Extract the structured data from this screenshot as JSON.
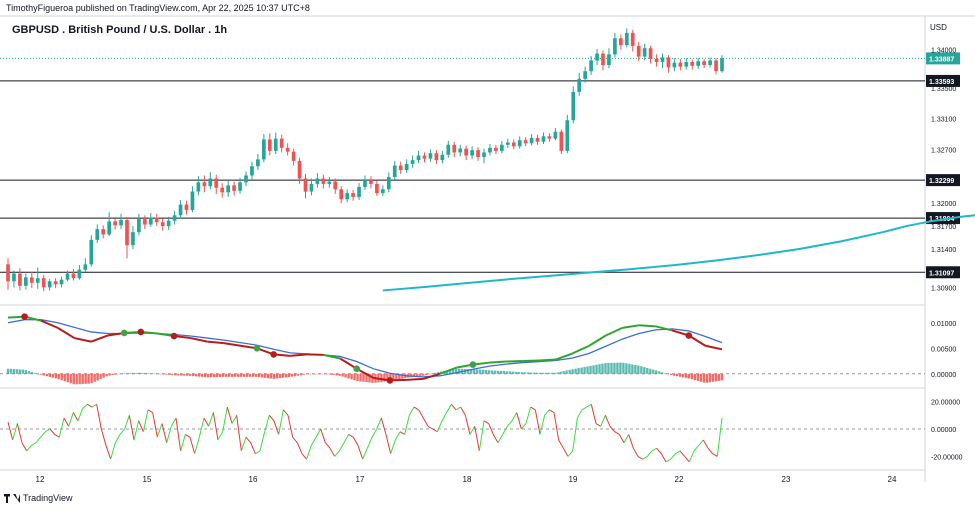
{
  "header": {
    "publish_info": "TimothyFigueroa published on TradingView.com, Apr 22, 2025 10:37 UTC+8",
    "symbol_title": "GBPUSD . British Pound / U.S. Dollar . 1h"
  },
  "footer": {
    "logo_text": "TradingView"
  },
  "colors": {
    "up": "#26a69a",
    "down": "#ef5350",
    "level_line": "#131722",
    "moving_average": "#1eb8c9",
    "macd_fast": "#2fa52f",
    "macd_slow": "#b71c1c",
    "macd_signal": "#3a6fd8",
    "osc_up": "#3cdc3c",
    "osc_down": "#e53935"
  },
  "chart_data": {
    "type": "candlestick",
    "currency": "USD",
    "price_axis": {
      "range": [
        1.3067,
        1.3444
      ],
      "ticks": [
        "1.34000",
        "1.33500",
        "1.33100",
        "1.32700",
        "1.32000",
        "1.31700",
        "1.31400",
        "1.30900"
      ]
    },
    "current_price": "1.33887",
    "levels": [
      "1.33593",
      "1.32299",
      "1.31804",
      "1.31097"
    ],
    "x_labels": [
      "12",
      "15",
      "16",
      "17",
      "18",
      "19",
      "22",
      "23",
      "24"
    ],
    "candles": [
      {
        "o": 1.312,
        "c": 1.3098,
        "h": 1.3128,
        "l": 1.3087
      },
      {
        "o": 1.3098,
        "c": 1.3108,
        "h": 1.3112,
        "l": 1.309
      },
      {
        "o": 1.3108,
        "c": 1.3092,
        "h": 1.3115,
        "l": 1.3086
      },
      {
        "o": 1.3092,
        "c": 1.3103,
        "h": 1.3108,
        "l": 1.3087
      },
      {
        "o": 1.3103,
        "c": 1.3096,
        "h": 1.311,
        "l": 1.3089
      },
      {
        "o": 1.3096,
        "c": 1.3102,
        "h": 1.3116,
        "l": 1.3088
      },
      {
        "o": 1.3102,
        "c": 1.309,
        "h": 1.3106,
        "l": 1.3085
      },
      {
        "o": 1.309,
        "c": 1.3098,
        "h": 1.3101,
        "l": 1.3086
      },
      {
        "o": 1.3098,
        "c": 1.3094,
        "h": 1.3102,
        "l": 1.3089
      },
      {
        "o": 1.3094,
        "c": 1.31,
        "h": 1.3104,
        "l": 1.309
      },
      {
        "o": 1.31,
        "c": 1.3108,
        "h": 1.3112,
        "l": 1.3098
      },
      {
        "o": 1.3108,
        "c": 1.3102,
        "h": 1.3114,
        "l": 1.3099
      },
      {
        "o": 1.3102,
        "c": 1.3113,
        "h": 1.3119,
        "l": 1.31
      },
      {
        "o": 1.3113,
        "c": 1.312,
        "h": 1.3128,
        "l": 1.311
      },
      {
        "o": 1.312,
        "c": 1.3152,
        "h": 1.3158,
        "l": 1.3117
      },
      {
        "o": 1.3152,
        "c": 1.3166,
        "h": 1.3172,
        "l": 1.3148
      },
      {
        "o": 1.3166,
        "c": 1.3159,
        "h": 1.3171,
        "l": 1.3154
      },
      {
        "o": 1.3159,
        "c": 1.3176,
        "h": 1.3188,
        "l": 1.3157
      },
      {
        "o": 1.3176,
        "c": 1.3171,
        "h": 1.3182,
        "l": 1.3165
      },
      {
        "o": 1.3171,
        "c": 1.3178,
        "h": 1.3186,
        "l": 1.3166
      },
      {
        "o": 1.3178,
        "c": 1.3145,
        "h": 1.3182,
        "l": 1.3128
      },
      {
        "o": 1.3145,
        "c": 1.3162,
        "h": 1.317,
        "l": 1.314
      },
      {
        "o": 1.3162,
        "c": 1.3179,
        "h": 1.3186,
        "l": 1.3158
      },
      {
        "o": 1.3179,
        "c": 1.3172,
        "h": 1.3184,
        "l": 1.3166
      },
      {
        "o": 1.3172,
        "c": 1.3181,
        "h": 1.3187,
        "l": 1.3169
      },
      {
        "o": 1.3181,
        "c": 1.3175,
        "h": 1.3186,
        "l": 1.317
      },
      {
        "o": 1.3175,
        "c": 1.317,
        "h": 1.318,
        "l": 1.3164
      },
      {
        "o": 1.317,
        "c": 1.3177,
        "h": 1.3182,
        "l": 1.3165
      },
      {
        "o": 1.3177,
        "c": 1.3184,
        "h": 1.319,
        "l": 1.3172
      },
      {
        "o": 1.3184,
        "c": 1.3198,
        "h": 1.3204,
        "l": 1.318
      },
      {
        "o": 1.3198,
        "c": 1.3191,
        "h": 1.3203,
        "l": 1.3185
      },
      {
        "o": 1.3191,
        "c": 1.3215,
        "h": 1.3222,
        "l": 1.3188
      },
      {
        "o": 1.3215,
        "c": 1.3227,
        "h": 1.3235,
        "l": 1.321
      },
      {
        "o": 1.3227,
        "c": 1.3222,
        "h": 1.3236,
        "l": 1.3214
      },
      {
        "o": 1.3222,
        "c": 1.3232,
        "h": 1.324,
        "l": 1.3218
      },
      {
        "o": 1.3232,
        "c": 1.322,
        "h": 1.3237,
        "l": 1.3212
      },
      {
        "o": 1.322,
        "c": 1.3214,
        "h": 1.3226,
        "l": 1.3207
      },
      {
        "o": 1.3214,
        "c": 1.3223,
        "h": 1.323,
        "l": 1.3208
      },
      {
        "o": 1.3223,
        "c": 1.3216,
        "h": 1.3228,
        "l": 1.321
      },
      {
        "o": 1.3216,
        "c": 1.3227,
        "h": 1.3233,
        "l": 1.3212
      },
      {
        "o": 1.3227,
        "c": 1.3236,
        "h": 1.3241,
        "l": 1.3222
      },
      {
        "o": 1.3236,
        "c": 1.3248,
        "h": 1.3254,
        "l": 1.3231
      },
      {
        "o": 1.3248,
        "c": 1.3257,
        "h": 1.3264,
        "l": 1.3243
      },
      {
        "o": 1.3257,
        "c": 1.3283,
        "h": 1.329,
        "l": 1.3253
      },
      {
        "o": 1.3283,
        "c": 1.3268,
        "h": 1.3291,
        "l": 1.3262
      },
      {
        "o": 1.3268,
        "c": 1.3284,
        "h": 1.3292,
        "l": 1.3264
      },
      {
        "o": 1.3284,
        "c": 1.3272,
        "h": 1.3289,
        "l": 1.3266
      },
      {
        "o": 1.3272,
        "c": 1.3267,
        "h": 1.3278,
        "l": 1.3262
      },
      {
        "o": 1.3267,
        "c": 1.3255,
        "h": 1.3271,
        "l": 1.3249
      },
      {
        "o": 1.3255,
        "c": 1.3232,
        "h": 1.3259,
        "l": 1.3225
      },
      {
        "o": 1.3232,
        "c": 1.3215,
        "h": 1.3238,
        "l": 1.3206
      },
      {
        "o": 1.3215,
        "c": 1.3225,
        "h": 1.3232,
        "l": 1.321
      },
      {
        "o": 1.3225,
        "c": 1.3232,
        "h": 1.3239,
        "l": 1.322
      },
      {
        "o": 1.3232,
        "c": 1.3225,
        "h": 1.3237,
        "l": 1.3219
      },
      {
        "o": 1.3225,
        "c": 1.3228,
        "h": 1.3234,
        "l": 1.322
      },
      {
        "o": 1.3228,
        "c": 1.3218,
        "h": 1.3232,
        "l": 1.3212
      },
      {
        "o": 1.3218,
        "c": 1.3205,
        "h": 1.3222,
        "l": 1.32
      },
      {
        "o": 1.3205,
        "c": 1.3213,
        "h": 1.3218,
        "l": 1.3201
      },
      {
        "o": 1.3213,
        "c": 1.3208,
        "h": 1.3217,
        "l": 1.3203
      },
      {
        "o": 1.3208,
        "c": 1.3221,
        "h": 1.3226,
        "l": 1.3204
      },
      {
        "o": 1.3221,
        "c": 1.323,
        "h": 1.3236,
        "l": 1.3217
      },
      {
        "o": 1.323,
        "c": 1.3225,
        "h": 1.3235,
        "l": 1.3219
      },
      {
        "o": 1.3225,
        "c": 1.3213,
        "h": 1.3229,
        "l": 1.3209
      },
      {
        "o": 1.3213,
        "c": 1.3218,
        "h": 1.3223,
        "l": 1.3209
      },
      {
        "o": 1.3218,
        "c": 1.3234,
        "h": 1.324,
        "l": 1.3214
      },
      {
        "o": 1.3234,
        "c": 1.3249,
        "h": 1.3255,
        "l": 1.323
      },
      {
        "o": 1.3249,
        "c": 1.3243,
        "h": 1.3254,
        "l": 1.3238
      },
      {
        "o": 1.3243,
        "c": 1.3251,
        "h": 1.3257,
        "l": 1.3239
      },
      {
        "o": 1.3251,
        "c": 1.3256,
        "h": 1.3262,
        "l": 1.3246
      },
      {
        "o": 1.3256,
        "c": 1.3262,
        "h": 1.3268,
        "l": 1.3252
      },
      {
        "o": 1.3262,
        "c": 1.3258,
        "h": 1.3266,
        "l": 1.3253
      },
      {
        "o": 1.3258,
        "c": 1.3265,
        "h": 1.327,
        "l": 1.3254
      },
      {
        "o": 1.3265,
        "c": 1.3256,
        "h": 1.3269,
        "l": 1.3251
      },
      {
        "o": 1.3256,
        "c": 1.3263,
        "h": 1.3268,
        "l": 1.3252
      },
      {
        "o": 1.3263,
        "c": 1.3276,
        "h": 1.3281,
        "l": 1.3259
      },
      {
        "o": 1.3276,
        "c": 1.3266,
        "h": 1.328,
        "l": 1.326
      },
      {
        "o": 1.3266,
        "c": 1.3271,
        "h": 1.3276,
        "l": 1.3261
      },
      {
        "o": 1.3271,
        "c": 1.3262,
        "h": 1.3275,
        "l": 1.3256
      },
      {
        "o": 1.3262,
        "c": 1.3269,
        "h": 1.3274,
        "l": 1.3257
      },
      {
        "o": 1.3269,
        "c": 1.326,
        "h": 1.3273,
        "l": 1.3255
      },
      {
        "o": 1.326,
        "c": 1.3266,
        "h": 1.3271,
        "l": 1.3252
      },
      {
        "o": 1.3266,
        "c": 1.3272,
        "h": 1.3277,
        "l": 1.3262
      },
      {
        "o": 1.3272,
        "c": 1.3268,
        "h": 1.3276,
        "l": 1.3264
      },
      {
        "o": 1.3268,
        "c": 1.3276,
        "h": 1.3281,
        "l": 1.3265
      },
      {
        "o": 1.3276,
        "c": 1.3279,
        "h": 1.3284,
        "l": 1.3272
      },
      {
        "o": 1.3279,
        "c": 1.3274,
        "h": 1.3283,
        "l": 1.327
      },
      {
        "o": 1.3274,
        "c": 1.3282,
        "h": 1.3287,
        "l": 1.3271
      },
      {
        "o": 1.3282,
        "c": 1.3278,
        "h": 1.3286,
        "l": 1.3274
      },
      {
        "o": 1.3278,
        "c": 1.3285,
        "h": 1.329,
        "l": 1.3275
      },
      {
        "o": 1.3285,
        "c": 1.328,
        "h": 1.3289,
        "l": 1.3276
      },
      {
        "o": 1.328,
        "c": 1.3287,
        "h": 1.3292,
        "l": 1.3277
      },
      {
        "o": 1.3287,
        "c": 1.3284,
        "h": 1.3291,
        "l": 1.328
      },
      {
        "o": 1.3284,
        "c": 1.3293,
        "h": 1.3298,
        "l": 1.3282
      },
      {
        "o": 1.3293,
        "c": 1.3268,
        "h": 1.3296,
        "l": 1.3264
      },
      {
        "o": 1.3268,
        "c": 1.3308,
        "h": 1.3315,
        "l": 1.3265
      },
      {
        "o": 1.3308,
        "c": 1.3345,
        "h": 1.3352,
        "l": 1.3304
      },
      {
        "o": 1.3345,
        "c": 1.3362,
        "h": 1.337,
        "l": 1.334
      },
      {
        "o": 1.3362,
        "c": 1.3372,
        "h": 1.3378,
        "l": 1.3357
      },
      {
        "o": 1.3372,
        "c": 1.3386,
        "h": 1.3392,
        "l": 1.3367
      },
      {
        "o": 1.3386,
        "c": 1.3395,
        "h": 1.3401,
        "l": 1.338
      },
      {
        "o": 1.3395,
        "c": 1.338,
        "h": 1.3399,
        "l": 1.3373
      },
      {
        "o": 1.338,
        "c": 1.3394,
        "h": 1.3402,
        "l": 1.3376
      },
      {
        "o": 1.3394,
        "c": 1.3415,
        "h": 1.3422,
        "l": 1.339
      },
      {
        "o": 1.3415,
        "c": 1.3406,
        "h": 1.342,
        "l": 1.34
      },
      {
        "o": 1.3406,
        "c": 1.3422,
        "h": 1.3428,
        "l": 1.3403
      },
      {
        "o": 1.3422,
        "c": 1.3405,
        "h": 1.3426,
        "l": 1.3398
      },
      {
        "o": 1.3405,
        "c": 1.3391,
        "h": 1.341,
        "l": 1.3385
      },
      {
        "o": 1.3391,
        "c": 1.3402,
        "h": 1.3408,
        "l": 1.3386
      },
      {
        "o": 1.3402,
        "c": 1.3388,
        "h": 1.3405,
        "l": 1.3382
      },
      {
        "o": 1.3388,
        "c": 1.3384,
        "h": 1.3394,
        "l": 1.3378
      },
      {
        "o": 1.3384,
        "c": 1.339,
        "h": 1.3395,
        "l": 1.3376
      },
      {
        "o": 1.339,
        "c": 1.3377,
        "h": 1.3393,
        "l": 1.337
      },
      {
        "o": 1.3377,
        "c": 1.3383,
        "h": 1.3389,
        "l": 1.3372
      },
      {
        "o": 1.3383,
        "c": 1.3378,
        "h": 1.3388,
        "l": 1.3373
      },
      {
        "o": 1.3378,
        "c": 1.3384,
        "h": 1.3389,
        "l": 1.3374
      },
      {
        "o": 1.3384,
        "c": 1.3379,
        "h": 1.3387,
        "l": 1.3374
      },
      {
        "o": 1.3379,
        "c": 1.3385,
        "h": 1.3389,
        "l": 1.3375
      },
      {
        "o": 1.3385,
        "c": 1.338,
        "h": 1.3388,
        "l": 1.3376
      },
      {
        "o": 1.338,
        "c": 1.3386,
        "h": 1.339,
        "l": 1.3377
      },
      {
        "o": 1.3386,
        "c": 1.3372,
        "h": 1.3389,
        "l": 1.3368
      },
      {
        "o": 1.3372,
        "c": 1.3389,
        "h": 1.3393,
        "l": 1.337
      }
    ],
    "moving_average": [
      [
        63,
        1.3086
      ],
      [
        70,
        1.30905
      ],
      [
        77,
        1.30955
      ],
      [
        84,
        1.31005
      ],
      [
        91,
        1.3105
      ],
      [
        98,
        1.31095
      ],
      [
        105,
        1.3114
      ],
      [
        112,
        1.3119
      ],
      [
        119,
        1.3125
      ],
      [
        126,
        1.3132
      ],
      [
        133,
        1.314
      ],
      [
        140,
        1.315
      ],
      [
        147,
        1.3162
      ],
      [
        151,
        1.317
      ],
      [
        155,
        1.3176
      ],
      [
        160,
        1.3182
      ],
      [
        165,
        1.3186
      ],
      [
        170,
        1.319
      ]
    ],
    "macd": {
      "axis_range": [
        -0.002,
        0.0125
      ],
      "ticks": [
        "0.01000",
        "0.00500",
        "0.00000"
      ],
      "fast": [
        0.011,
        0.0112,
        0.0104,
        0.009,
        0.007,
        0.0063,
        0.0075,
        0.008,
        0.0082,
        0.0079,
        0.0074,
        0.007,
        0.0063,
        0.006,
        0.0055,
        0.005,
        0.0038,
        0.0035,
        0.0038,
        0.0037,
        0.003,
        0.001,
        -0.0008,
        -0.0013,
        -0.0012,
        -0.001,
        0.0,
        0.0012,
        0.0018,
        0.0022,
        0.0024,
        0.0025,
        0.0026,
        0.0028,
        0.004,
        0.0055,
        0.0075,
        0.009,
        0.0095,
        0.0093,
        0.0085,
        0.0075,
        0.0055,
        0.0048
      ],
      "signal": [
        0.01,
        0.0106,
        0.0106,
        0.01,
        0.0091,
        0.0082,
        0.0079,
        0.0079,
        0.008,
        0.0079,
        0.0077,
        0.0074,
        0.007,
        0.0066,
        0.0061,
        0.0056,
        0.0048,
        0.0041,
        0.0039,
        0.0037,
        0.0034,
        0.0024,
        0.001,
        0.0001,
        -0.0004,
        -0.0006,
        -0.0004,
        0.0002,
        0.0009,
        0.0015,
        0.0019,
        0.0022,
        0.0024,
        0.0026,
        0.0031,
        0.004,
        0.0054,
        0.0068,
        0.0079,
        0.0086,
        0.0088,
        0.0084,
        0.0073,
        0.0061
      ],
      "histogram": [
        0.001,
        0.0008,
        -0.0002,
        -0.001,
        -0.0021,
        -0.0019,
        -0.0004,
        0.0001,
        0.0002,
        0.0,
        -0.0003,
        -0.0004,
        -0.0007,
        -0.0006,
        -0.0006,
        -0.0006,
        -0.001,
        -0.0006,
        -0.0001,
        0.0,
        -0.0004,
        -0.0014,
        -0.0018,
        -0.0014,
        -0.0008,
        -0.0004,
        0.0004,
        0.001,
        0.0009,
        0.0007,
        0.0005,
        0.0003,
        0.0002,
        0.0002,
        0.0009,
        0.0015,
        0.0021,
        0.0022,
        0.0016,
        0.0007,
        -0.0003,
        -0.0009,
        -0.0018,
        -0.0013
      ],
      "cross_markers": [
        {
          "index": 1,
          "kind": "bearish"
        },
        {
          "index": 7,
          "kind": "bullish"
        },
        {
          "index": 8,
          "kind": "bearish"
        },
        {
          "index": 10,
          "kind": "bearish"
        },
        {
          "index": 15,
          "kind": "bullish"
        },
        {
          "index": 16,
          "kind": "bearish"
        },
        {
          "index": 21,
          "kind": "bullish"
        },
        {
          "index": 23,
          "kind": "bearish"
        },
        {
          "index": 28,
          "kind": "bullish"
        },
        {
          "index": 41,
          "kind": "bearish"
        }
      ]
    },
    "oscillator": {
      "axis_range": [
        -27,
        27
      ],
      "ticks": [
        "20.00000",
        "0.00000",
        "-20.00000"
      ],
      "values": [
        5,
        -8,
        4,
        -10,
        -16,
        -12,
        -10,
        -6,
        -2,
        0,
        -4,
        -6,
        8,
        2,
        12,
        6,
        15,
        18,
        16,
        18,
        0,
        -12,
        -22,
        -10,
        -4,
        0,
        10,
        -8,
        6,
        -2,
        14,
        12,
        -6,
        4,
        -10,
        2,
        8,
        -16,
        -4,
        -6,
        -18,
        -6,
        8,
        2,
        12,
        -8,
        -2,
        16,
        4,
        10,
        -16,
        -6,
        -10,
        -18,
        -16,
        -2,
        10,
        6,
        -4,
        14,
        10,
        -6,
        -10,
        -18,
        -22,
        -12,
        -6,
        0,
        -10,
        -14,
        -20,
        -16,
        -10,
        -4,
        -6,
        -12,
        -22,
        -14,
        -6,
        0,
        8,
        -4,
        -18,
        -8,
        -2,
        -4,
        10,
        16,
        14,
        8,
        2,
        0,
        -2,
        6,
        12,
        18,
        14,
        16,
        10,
        -4,
        2,
        -16,
        6,
        4,
        -4,
        -10,
        -4,
        2,
        6,
        12,
        0,
        4,
        16,
        14,
        -4,
        10,
        14,
        12,
        -8,
        -14,
        -20,
        -16,
        8,
        14,
        16,
        18,
        4,
        2,
        10,
        2,
        -2,
        -4,
        -10,
        -4,
        -14,
        -20,
        -22,
        -20,
        -16,
        -14,
        -18,
        -24,
        -22,
        -18,
        -16,
        -20,
        -24,
        -16,
        -12,
        -8,
        -14,
        -18,
        -20,
        8
      ],
      "zero_line": "0.00000"
    }
  }
}
